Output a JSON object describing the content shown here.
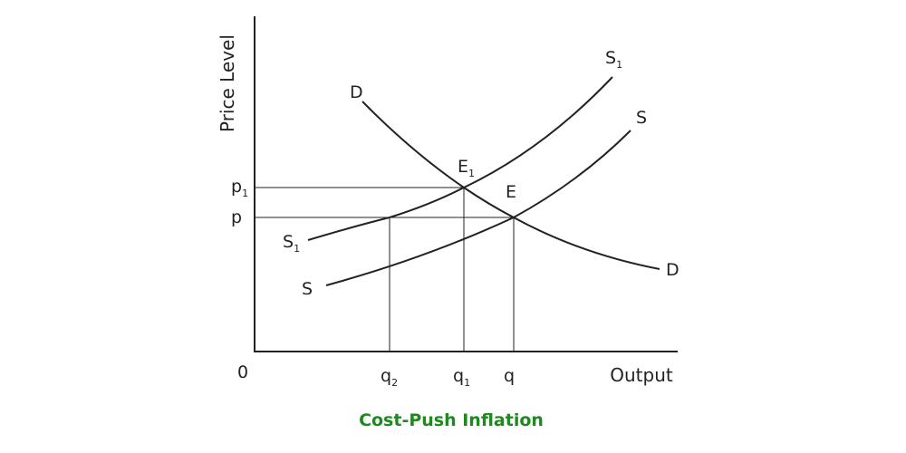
{
  "axes": {
    "y_label": "Price Level",
    "x_label": "Output",
    "origin": "0"
  },
  "x_ticks": [
    {
      "base": "q",
      "sub": "2"
    },
    {
      "base": "q",
      "sub": "1"
    },
    {
      "base": "q"
    }
  ],
  "y_ticks": [
    {
      "base": "p",
      "sub": "1"
    },
    {
      "base": "p"
    }
  ],
  "curves": [
    {
      "start": {
        "base": "D"
      },
      "end": {
        "base": "D"
      }
    },
    {
      "start": {
        "base": "S",
        "sub": "1"
      },
      "end": {
        "base": "S",
        "sub": "1"
      }
    },
    {
      "start": {
        "base": "S"
      },
      "end": {
        "base": "S"
      }
    }
  ],
  "points": [
    {
      "base": "E",
      "sub": "1"
    },
    {
      "base": "E"
    }
  ],
  "caption": "Cost-Push Inflation"
}
